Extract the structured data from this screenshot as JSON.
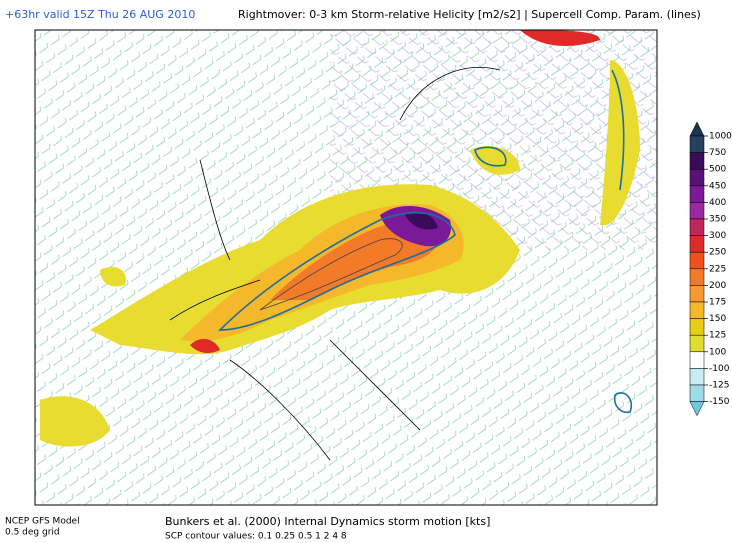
{
  "header": {
    "run": "+63hr valid 15Z Thu 26 AUG 2010",
    "title": "Rightmover: 0-3 km Storm-relative Helicity [m2/s2] | Supercell Comp. Param. (lines)"
  },
  "colorbar": {
    "levels": [
      1000,
      750,
      500,
      450,
      400,
      350,
      300,
      250,
      225,
      200,
      175,
      150,
      125,
      100,
      -100,
      -125,
      -150
    ],
    "colors": [
      "#1b3550",
      "#24415e",
      "#3c0a5a",
      "#5a1078",
      "#7a1a98",
      "#9a2aa0",
      "#c0285a",
      "#e02a2a",
      "#f0501e",
      "#f27a28",
      "#f59a30",
      "#f5b82a",
      "#e8cc18",
      "#e0dc30",
      "#ffffff",
      "#c6ecf4",
      "#9cdcea",
      "#6ccbe0"
    ]
  },
  "footer": {
    "model": "NCEP GFS Model",
    "grid": "0.5 deg grid",
    "storm_motion": "Bunkers et al. (2000) Internal Dynamics storm motion [kts]",
    "scp_values": "SCP contour values: 0.1 0.25 0.5 1 2 4 8"
  }
}
